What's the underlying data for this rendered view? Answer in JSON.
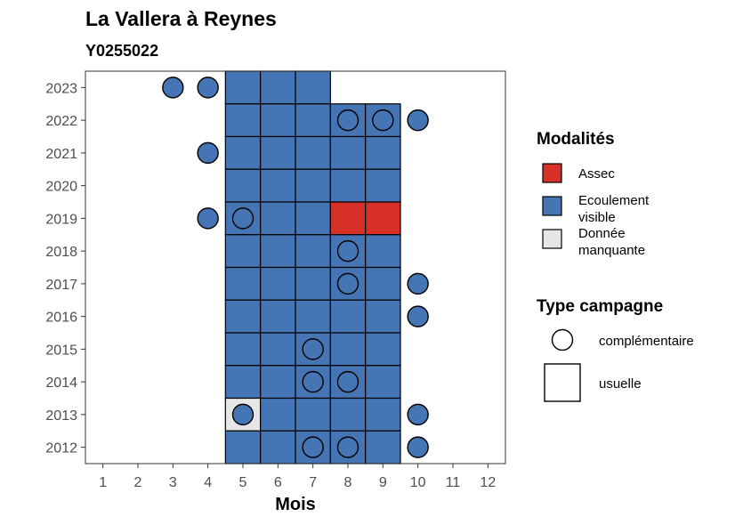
{
  "chart_data": {
    "type": "heatmap",
    "title": "La Vallera à Reynes",
    "subtitle": "Y0255022",
    "xlabel": "Mois",
    "ylabel": "",
    "x_ticks": [
      1,
      2,
      3,
      4,
      5,
      6,
      7,
      8,
      9,
      10,
      11,
      12
    ],
    "y_ticks": [
      2012,
      2013,
      2014,
      2015,
      2016,
      2017,
      2018,
      2019,
      2020,
      2021,
      2022,
      2023
    ],
    "xlim": [
      0.5,
      12.5
    ],
    "ylim": [
      2011.5,
      2023.5
    ],
    "colors": {
      "Assec": "#d73027",
      "Ecoulement visible": "#4575b4",
      "Donnée manquante": "#e6e6e6"
    },
    "legend_modalites": {
      "title": "Modalités",
      "items": [
        {
          "label": "Assec",
          "color": "#d73027"
        },
        {
          "label": "Ecoulement visible",
          "color": "#4575b4"
        },
        {
          "label": "Donnée manquante",
          "color": "#e6e6e6"
        }
      ]
    },
    "legend_type": {
      "title": "Type campagne",
      "items": [
        {
          "label": "complémentaire",
          "shape": "circle"
        },
        {
          "label": "usuelle",
          "shape": "square"
        }
      ]
    },
    "tiles": [
      {
        "year": 2023,
        "month": 5,
        "m": "Ecoulement visible"
      },
      {
        "year": 2023,
        "month": 6,
        "m": "Ecoulement visible"
      },
      {
        "year": 2023,
        "month": 7,
        "m": "Ecoulement visible"
      },
      {
        "year": 2022,
        "month": 5,
        "m": "Ecoulement visible"
      },
      {
        "year": 2022,
        "month": 6,
        "m": "Ecoulement visible"
      },
      {
        "year": 2022,
        "month": 7,
        "m": "Ecoulement visible"
      },
      {
        "year": 2022,
        "month": 8,
        "m": "Ecoulement visible"
      },
      {
        "year": 2022,
        "month": 9,
        "m": "Ecoulement visible"
      },
      {
        "year": 2021,
        "month": 5,
        "m": "Ecoulement visible"
      },
      {
        "year": 2021,
        "month": 6,
        "m": "Ecoulement visible"
      },
      {
        "year": 2021,
        "month": 7,
        "m": "Ecoulement visible"
      },
      {
        "year": 2021,
        "month": 8,
        "m": "Ecoulement visible"
      },
      {
        "year": 2021,
        "month": 9,
        "m": "Ecoulement visible"
      },
      {
        "year": 2020,
        "month": 5,
        "m": "Ecoulement visible"
      },
      {
        "year": 2020,
        "month": 6,
        "m": "Ecoulement visible"
      },
      {
        "year": 2020,
        "month": 7,
        "m": "Ecoulement visible"
      },
      {
        "year": 2020,
        "month": 8,
        "m": "Ecoulement visible"
      },
      {
        "year": 2020,
        "month": 9,
        "m": "Ecoulement visible"
      },
      {
        "year": 2019,
        "month": 5,
        "m": "Ecoulement visible"
      },
      {
        "year": 2019,
        "month": 6,
        "m": "Ecoulement visible"
      },
      {
        "year": 2019,
        "month": 7,
        "m": "Ecoulement visible"
      },
      {
        "year": 2019,
        "month": 8,
        "m": "Assec"
      },
      {
        "year": 2019,
        "month": 9,
        "m": "Assec"
      },
      {
        "year": 2018,
        "month": 5,
        "m": "Ecoulement visible"
      },
      {
        "year": 2018,
        "month": 6,
        "m": "Ecoulement visible"
      },
      {
        "year": 2018,
        "month": 7,
        "m": "Ecoulement visible"
      },
      {
        "year": 2018,
        "month": 8,
        "m": "Ecoulement visible"
      },
      {
        "year": 2018,
        "month": 9,
        "m": "Ecoulement visible"
      },
      {
        "year": 2017,
        "month": 5,
        "m": "Ecoulement visible"
      },
      {
        "year": 2017,
        "month": 6,
        "m": "Ecoulement visible"
      },
      {
        "year": 2017,
        "month": 7,
        "m": "Ecoulement visible"
      },
      {
        "year": 2017,
        "month": 8,
        "m": "Ecoulement visible"
      },
      {
        "year": 2017,
        "month": 9,
        "m": "Ecoulement visible"
      },
      {
        "year": 2016,
        "month": 5,
        "m": "Ecoulement visible"
      },
      {
        "year": 2016,
        "month": 6,
        "m": "Ecoulement visible"
      },
      {
        "year": 2016,
        "month": 7,
        "m": "Ecoulement visible"
      },
      {
        "year": 2016,
        "month": 8,
        "m": "Ecoulement visible"
      },
      {
        "year": 2016,
        "month": 9,
        "m": "Ecoulement visible"
      },
      {
        "year": 2015,
        "month": 5,
        "m": "Ecoulement visible"
      },
      {
        "year": 2015,
        "month": 6,
        "m": "Ecoulement visible"
      },
      {
        "year": 2015,
        "month": 7,
        "m": "Ecoulement visible"
      },
      {
        "year": 2015,
        "month": 8,
        "m": "Ecoulement visible"
      },
      {
        "year": 2015,
        "month": 9,
        "m": "Ecoulement visible"
      },
      {
        "year": 2014,
        "month": 5,
        "m": "Ecoulement visible"
      },
      {
        "year": 2014,
        "month": 6,
        "m": "Ecoulement visible"
      },
      {
        "year": 2014,
        "month": 7,
        "m": "Ecoulement visible"
      },
      {
        "year": 2014,
        "month": 8,
        "m": "Ecoulement visible"
      },
      {
        "year": 2014,
        "month": 9,
        "m": "Ecoulement visible"
      },
      {
        "year": 2013,
        "month": 5,
        "m": "Donnée manquante"
      },
      {
        "year": 2013,
        "month": 6,
        "m": "Ecoulement visible"
      },
      {
        "year": 2013,
        "month": 7,
        "m": "Ecoulement visible"
      },
      {
        "year": 2013,
        "month": 8,
        "m": "Ecoulement visible"
      },
      {
        "year": 2013,
        "month": 9,
        "m": "Ecoulement visible"
      },
      {
        "year": 2012,
        "month": 5,
        "m": "Ecoulement visible"
      },
      {
        "year": 2012,
        "month": 6,
        "m": "Ecoulement visible"
      },
      {
        "year": 2012,
        "month": 7,
        "m": "Ecoulement visible"
      },
      {
        "year": 2012,
        "month": 8,
        "m": "Ecoulement visible"
      },
      {
        "year": 2012,
        "month": 9,
        "m": "Ecoulement visible"
      }
    ],
    "points": [
      {
        "year": 2023,
        "month": 3,
        "m": "Ecoulement visible"
      },
      {
        "year": 2023,
        "month": 4,
        "m": "Ecoulement visible"
      },
      {
        "year": 2022,
        "month": 8,
        "m": "Ecoulement visible"
      },
      {
        "year": 2022,
        "month": 9,
        "m": "Ecoulement visible"
      },
      {
        "year": 2022,
        "month": 10,
        "m": "Ecoulement visible"
      },
      {
        "year": 2021,
        "month": 4,
        "m": "Ecoulement visible"
      },
      {
        "year": 2019,
        "month": 4,
        "m": "Ecoulement visible"
      },
      {
        "year": 2019,
        "month": 5,
        "m": "Ecoulement visible"
      },
      {
        "year": 2018,
        "month": 8,
        "m": "Ecoulement visible"
      },
      {
        "year": 2017,
        "month": 8,
        "m": "Ecoulement visible"
      },
      {
        "year": 2017,
        "month": 10,
        "m": "Ecoulement visible"
      },
      {
        "year": 2016,
        "month": 10,
        "m": "Ecoulement visible"
      },
      {
        "year": 2015,
        "month": 7,
        "m": "Ecoulement visible"
      },
      {
        "year": 2014,
        "month": 7,
        "m": "Ecoulement visible"
      },
      {
        "year": 2014,
        "month": 8,
        "m": "Ecoulement visible"
      },
      {
        "year": 2013,
        "month": 5,
        "m": "Ecoulement visible"
      },
      {
        "year": 2013,
        "month": 10,
        "m": "Ecoulement visible"
      },
      {
        "year": 2012,
        "month": 7,
        "m": "Ecoulement visible"
      },
      {
        "year": 2012,
        "month": 8,
        "m": "Ecoulement visible"
      },
      {
        "year": 2012,
        "month": 10,
        "m": "Ecoulement visible"
      }
    ]
  }
}
